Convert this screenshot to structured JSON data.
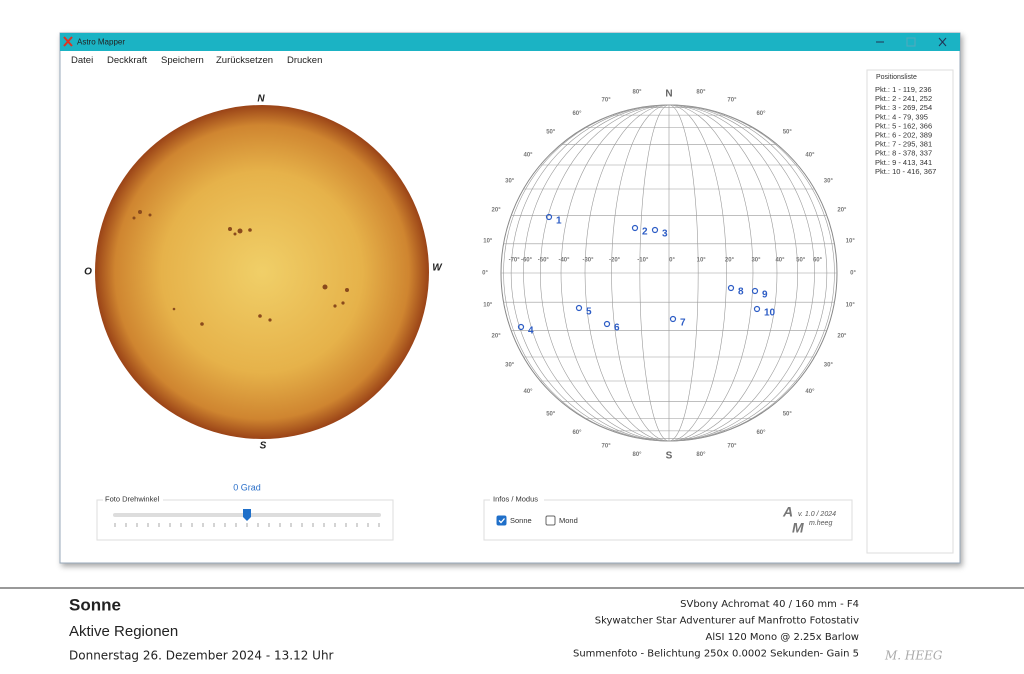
{
  "window": {
    "title": "Astro Mapper",
    "menu": [
      "Datei",
      "Deckkraft",
      "Speichern",
      "Zurücksetzen",
      "Drucken"
    ]
  },
  "sun": {
    "north": "N",
    "south": "S",
    "east": "O",
    "west": "W"
  },
  "globe": {
    "north": "N",
    "south": "S",
    "lat_labels": [
      "10°",
      "20°",
      "30°",
      "40°",
      "50°",
      "60°",
      "70°",
      "80°"
    ],
    "lon_labels": [
      "-70°",
      "-60°",
      "-50°",
      "-40°",
      "-30°",
      "-20°",
      "-10°",
      "0°",
      "10°",
      "20°",
      "30°",
      "40°",
      "50°",
      "60°"
    ],
    "equator_label": "0°",
    "points": [
      "1",
      "2",
      "3",
      "4",
      "5",
      "6",
      "7",
      "8",
      "9",
      "10"
    ]
  },
  "positions": {
    "title": "Positionsliste",
    "items": [
      "Pkt.: 1 - 119, 236",
      "Pkt.: 2 - 241, 252",
      "Pkt.: 3 - 269, 254",
      "Pkt.: 4 - 79, 395",
      "Pkt.: 5 - 162, 366",
      "Pkt.: 6 - 202, 389",
      "Pkt.: 7 - 295, 381",
      "Pkt.: 8 - 378, 337",
      "Pkt.: 9 - 413, 341",
      "Pkt.: 10 - 416, 367"
    ]
  },
  "rotation": {
    "value_label": "0 Grad",
    "group": "Foto Drehwinkel"
  },
  "info": {
    "group": "Infos / Modus",
    "options": [
      {
        "label": "Sonne",
        "checked": true
      },
      {
        "label": "Mond",
        "checked": false
      }
    ],
    "logo": {
      "a": "A",
      "m": "M",
      "version": "v. 1.0 / 2024",
      "author": "m.heeg"
    }
  },
  "caption": {
    "title": "Sonne",
    "subtitle": "Aktive Regionen",
    "date": "Donnerstag 26. Dezember 2024 - 13.12 Uhr",
    "equipment": [
      "SVbony Achromat 40 / 160 mm - F4",
      "Skywatcher Star Adventurer auf Manfrotto Fotostativ",
      "AlSI 120 Mono @ 2.25x Barlow",
      "Summenfoto - Belichtung 250x 0.0002 Sekunden- Gain 5"
    ],
    "signature": "M. HEEG"
  }
}
